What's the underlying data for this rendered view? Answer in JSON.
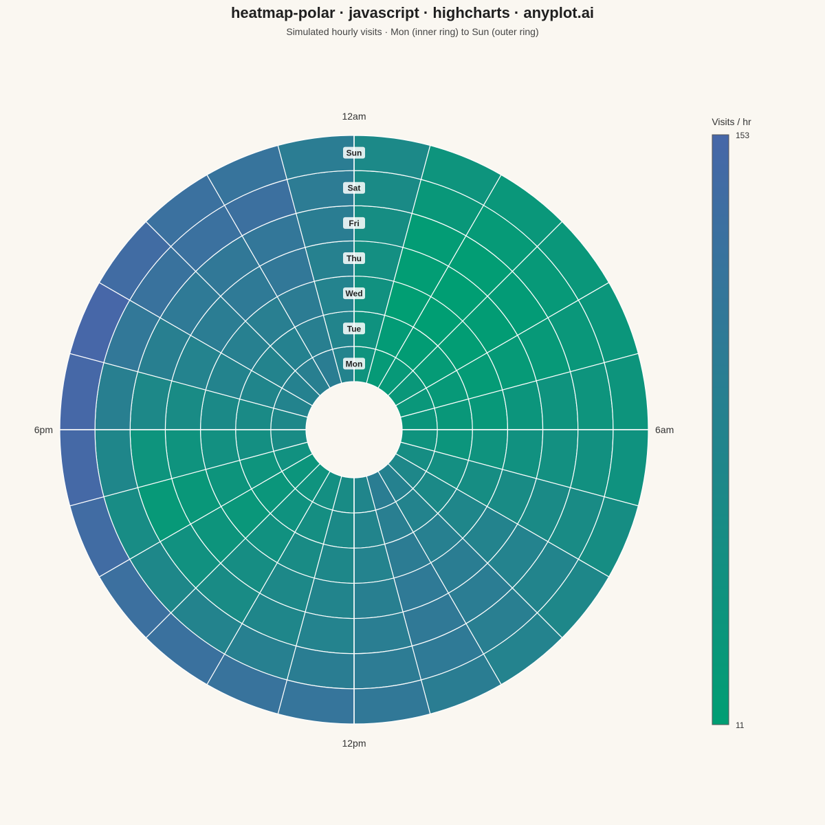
{
  "chart_data": {
    "type": "heatmap",
    "subtype": "polar",
    "title": "heatmap-polar · javascript · highcharts · anyplot.ai",
    "subtitle": "Simulated hourly visits · Mon (inner ring) to Sun (outer ring)",
    "angular_tick_labels": [
      {
        "hour": 0,
        "label": "12am"
      },
      {
        "hour": 6,
        "label": "6am"
      },
      {
        "hour": 12,
        "label": "12pm"
      },
      {
        "hour": 18,
        "label": "6pm"
      }
    ],
    "rings": [
      "Mon",
      "Tue",
      "Wed",
      "Thu",
      "Fri",
      "Sat",
      "Sun"
    ],
    "sectors": 24,
    "colorscale": {
      "title": "Visits / hr",
      "min": 11,
      "max": 153,
      "low_color": "#009e73",
      "high_color": "#4767a8"
    },
    "values": [
      [
        40,
        22,
        25,
        28,
        30,
        33,
        40,
        55,
        70,
        85,
        95,
        75,
        60,
        50,
        40,
        35,
        45,
        60,
        70,
        80,
        85,
        90,
        95,
        80
      ],
      [
        42,
        18,
        15,
        20,
        24,
        28,
        35,
        50,
        65,
        80,
        92,
        78,
        64,
        52,
        42,
        32,
        38,
        50,
        62,
        75,
        80,
        85,
        90,
        78
      ],
      [
        45,
        12,
        11,
        14,
        20,
        26,
        40,
        55,
        72,
        88,
        98,
        82,
        70,
        60,
        45,
        30,
        36,
        48,
        65,
        80,
        88,
        92,
        98,
        82
      ],
      [
        50,
        14,
        11,
        15,
        22,
        35,
        45,
        60,
        80,
        95,
        104,
        90,
        78,
        68,
        55,
        36,
        28,
        40,
        60,
        82,
        96,
        105,
        110,
        86
      ],
      [
        55,
        16,
        14,
        18,
        25,
        40,
        48,
        62,
        82,
        96,
        106,
        94,
        82,
        72,
        60,
        45,
        25,
        38,
        68,
        90,
        104,
        108,
        112,
        95
      ],
      [
        62,
        28,
        22,
        25,
        30,
        38,
        46,
        60,
        78,
        92,
        104,
        100,
        95,
        88,
        80,
        70,
        58,
        72,
        90,
        110,
        124,
        128,
        130,
        100
      ],
      [
        66,
        38,
        30,
        30,
        32,
        36,
        42,
        55,
        70,
        82,
        95,
        108,
        118,
        122,
        126,
        130,
        140,
        148,
        150,
        153,
        140,
        128,
        120,
        96
      ]
    ]
  }
}
